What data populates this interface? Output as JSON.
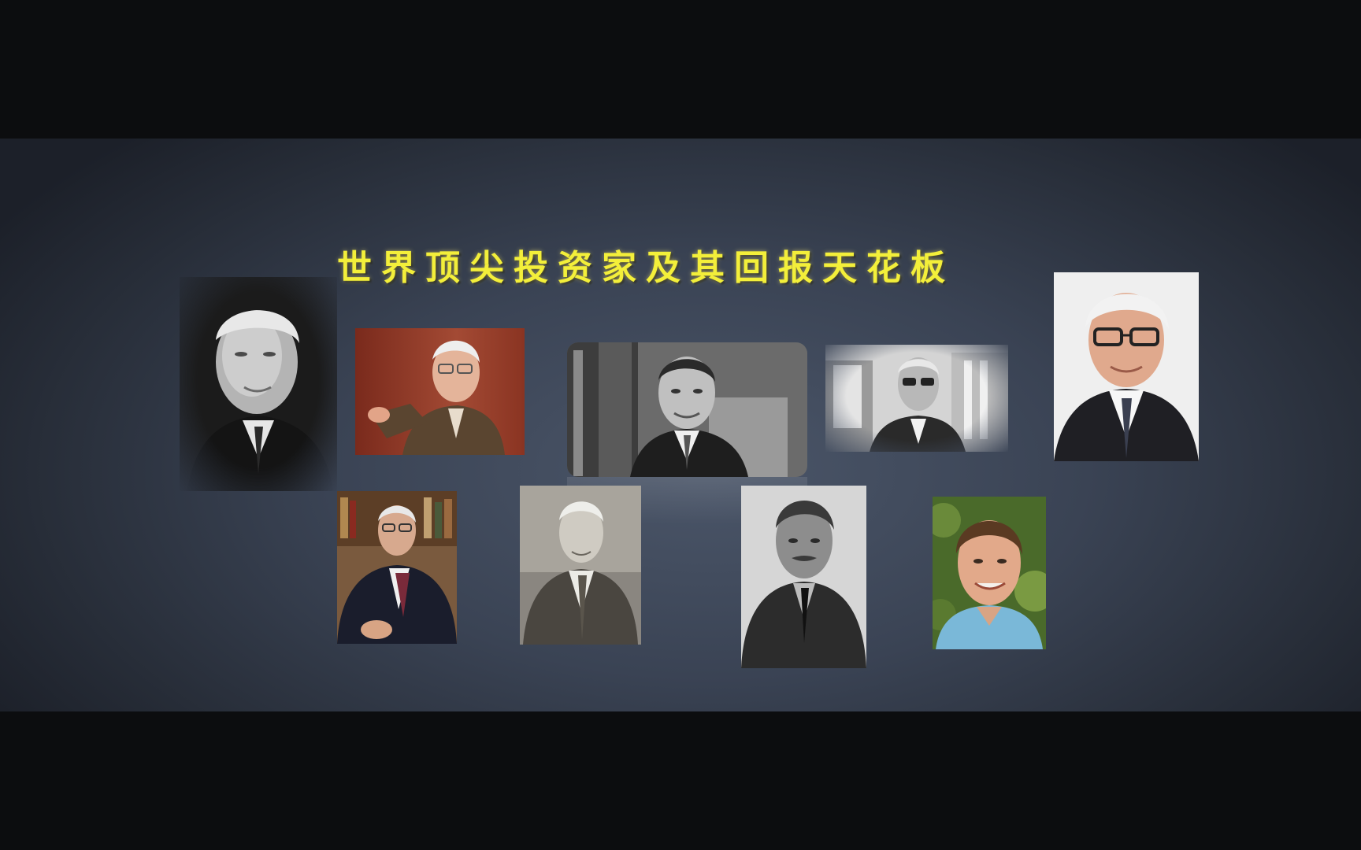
{
  "slide": {
    "title": "世界顶尖投资家及其回报天花板"
  },
  "colors": {
    "title": "#f3ef3a",
    "background_center": "#4b5669",
    "background_edge": "#1c2029",
    "letterbox": "#0c0d0f"
  },
  "photos": [
    {
      "name": "portrait-photo-1",
      "style": "monochrome",
      "edge": "soft-vignette"
    },
    {
      "name": "portrait-photo-2",
      "style": "color",
      "backdrop": "red-brown"
    },
    {
      "name": "portrait-photo-3",
      "style": "monochrome",
      "edge": "rounded-with-reflection"
    },
    {
      "name": "portrait-photo-4",
      "style": "monochrome",
      "edge": "soft-vignette"
    },
    {
      "name": "portrait-photo-5",
      "style": "color",
      "backdrop": "white"
    },
    {
      "name": "portrait-photo-6",
      "style": "color",
      "backdrop": "bookshelf"
    },
    {
      "name": "portrait-photo-7",
      "style": "sepia"
    },
    {
      "name": "portrait-photo-8",
      "style": "monochrome"
    },
    {
      "name": "portrait-photo-9",
      "style": "color",
      "backdrop": "foliage"
    }
  ]
}
